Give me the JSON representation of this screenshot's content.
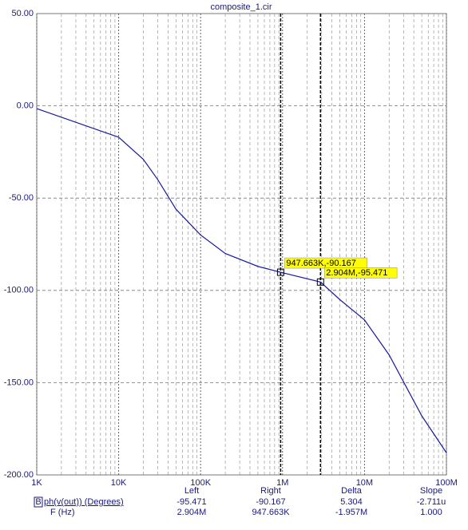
{
  "chart_data": {
    "type": "line",
    "title": "composite_1.cir",
    "x": [
      1000,
      10000,
      20000,
      30000,
      50000,
      100000,
      200000,
      500000,
      947663,
      2904000,
      5000000,
      10000000,
      20000000,
      50000000,
      100000000
    ],
    "series": [
      {
        "name": "ph(v(out)) (Degrees)",
        "color": "#1a1aa0",
        "values": [
          -1.5,
          -17,
          -29,
          -40,
          -56,
          -70,
          -80,
          -87,
          -90.167,
          -95.471,
          -105,
          -116,
          -135,
          -168,
          -188
        ]
      }
    ],
    "xscale": "log",
    "xlim": [
      1000,
      100000000
    ],
    "xticks": [
      {
        "value": 1000,
        "label": "1K"
      },
      {
        "value": 10000,
        "label": "10K"
      },
      {
        "value": 100000,
        "label": "100K"
      },
      {
        "value": 1000000,
        "label": "1M"
      },
      {
        "value": 10000000,
        "label": "10M"
      },
      {
        "value": 100000000,
        "label": "100M"
      }
    ],
    "ylim": [
      -200,
      50
    ],
    "yticks": [
      {
        "value": 50,
        "label": "50.00"
      },
      {
        "value": 0,
        "label": "0.00"
      },
      {
        "value": -50,
        "label": "-50.00"
      },
      {
        "value": -100,
        "label": "-100.00"
      },
      {
        "value": -150,
        "label": "-150.00"
      },
      {
        "value": -200,
        "label": "-200.00"
      }
    ],
    "grid": true,
    "cursors": [
      {
        "x": 947663,
        "y": -90.167,
        "label": "947.663K,-90.167"
      },
      {
        "x": 2904000,
        "y": -95.471,
        "label": "2.904M,-95.471"
      }
    ]
  },
  "readout": {
    "columns": [
      "Left",
      "Right",
      "Delta",
      "Slope"
    ],
    "trace_key": "B",
    "rows": [
      [
        "ph(v(out)) (Degrees)",
        "-95.471",
        "-90.167",
        "5.304",
        "-2.711u"
      ],
      [
        "F (Hz)",
        "2.904M",
        "947.663K",
        "-1.957M",
        "1.000"
      ]
    ]
  }
}
